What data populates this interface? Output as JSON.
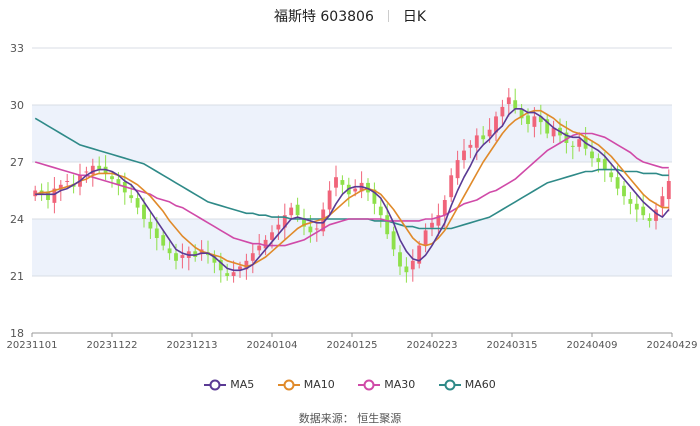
{
  "header": {
    "name": "福斯特 603806",
    "period": "日K"
  },
  "source_text": "数据来源： 恒生聚源",
  "colors": {
    "up": "#f0647a",
    "down": "#8ee04a",
    "ma5": "#5a3a94",
    "ma10": "#e08a2a",
    "ma30": "#d04aa8",
    "ma60": "#2f8a88",
    "band": "#edf2fb",
    "grid": "#d8dde6"
  },
  "chart_data": {
    "type": "candlestick",
    "ylim": [
      18,
      33
    ],
    "yticks": [
      18,
      21,
      24,
      27,
      30,
      33
    ],
    "xtick_labels": [
      "20231101",
      "20231122",
      "20231213",
      "20240104",
      "20240125",
      "20240223",
      "20240315",
      "20240409",
      "20240429"
    ],
    "closes": [
      25.5,
      25.3,
      25.0,
      25.6,
      25.8,
      26.0,
      25.7,
      26.3,
      26.5,
      26.8,
      26.6,
      26.4,
      26.1,
      25.8,
      25.4,
      25.1,
      24.6,
      24.0,
      23.5,
      23.0,
      22.6,
      22.2,
      21.8,
      22.1,
      22.3,
      22.0,
      22.4,
      22.1,
      21.7,
      21.3,
      21.0,
      21.2,
      21.5,
      21.8,
      22.2,
      22.6,
      22.9,
      23.3,
      23.7,
      24.2,
      24.6,
      24.2,
      23.6,
      23.3,
      23.5,
      24.5,
      25.5,
      26.2,
      25.8,
      25.3,
      25.6,
      25.9,
      25.4,
      24.8,
      24.2,
      23.2,
      22.4,
      21.5,
      21.2,
      21.8,
      22.6,
      23.4,
      23.8,
      24.2,
      25.0,
      26.3,
      27.1,
      27.6,
      27.9,
      28.4,
      28.2,
      28.7,
      29.4,
      29.9,
      30.4,
      29.8,
      29.3,
      29.0,
      29.4,
      29.1,
      28.5,
      28.8,
      28.4,
      28.0,
      27.8,
      28.2,
      27.7,
      27.2,
      27.0,
      26.6,
      26.2,
      25.6,
      25.2,
      24.8,
      24.5,
      24.2,
      23.9,
      24.5,
      25.2,
      26.0
    ],
    "ma5": [
      25.3,
      25.3,
      25.3,
      25.3,
      25.5,
      25.6,
      25.8,
      26.0,
      26.3,
      26.5,
      26.6,
      26.6,
      26.5,
      26.3,
      26.0,
      25.8,
      25.4,
      24.9,
      24.4,
      23.9,
      23.4,
      22.9,
      22.4,
      22.2,
      22.1,
      22.1,
      22.2,
      22.2,
      22.0,
      21.7,
      21.4,
      21.3,
      21.3,
      21.4,
      21.6,
      22.0,
      22.4,
      22.8,
      23.2,
      23.6,
      24.0,
      24.1,
      24.0,
      23.9,
      23.8,
      23.8,
      24.2,
      24.8,
      25.3,
      25.6,
      25.7,
      25.7,
      25.6,
      25.4,
      25.1,
      24.5,
      23.8,
      22.9,
      22.3,
      21.9,
      21.8,
      22.1,
      22.6,
      23.2,
      23.8,
      24.7,
      25.5,
      26.2,
      26.8,
      27.5,
      27.9,
      28.2,
      28.6,
      28.9,
      29.5,
      29.8,
      29.8,
      29.6,
      29.6,
      29.4,
      29.1,
      28.8,
      28.6,
      28.4,
      28.3,
      28.3,
      28.0,
      27.8,
      27.6,
      27.3,
      26.9,
      26.5,
      26.1,
      25.7,
      25.3,
      24.9,
      24.6,
      24.3,
      24.1,
      24.5
    ],
    "ma10": [
      25.3,
      25.4,
      25.4,
      25.5,
      25.6,
      25.7,
      25.8,
      26.0,
      26.1,
      26.3,
      26.4,
      26.4,
      26.4,
      26.3,
      26.2,
      26.0,
      25.8,
      25.5,
      25.2,
      24.8,
      24.4,
      23.9,
      23.5,
      23.1,
      22.8,
      22.5,
      22.3,
      22.2,
      22.1,
      22.0,
      21.8,
      21.7,
      21.6,
      21.5,
      21.6,
      21.8,
      22.0,
      22.3,
      22.6,
      22.9,
      23.2,
      23.5,
      23.7,
      23.8,
      23.9,
      24.0,
      24.2,
      24.5,
      24.8,
      25.1,
      25.3,
      25.5,
      25.6,
      25.5,
      25.3,
      24.9,
      24.5,
      24.0,
      23.5,
      23.0,
      22.7,
      22.6,
      22.7,
      23.0,
      23.4,
      24.0,
      24.6,
      25.2,
      25.8,
      26.4,
      27.0,
      27.5,
      28.0,
      28.5,
      28.9,
      29.2,
      29.4,
      29.6,
      29.7,
      29.7,
      29.5,
      29.3,
      29.0,
      28.8,
      28.6,
      28.5,
      28.3,
      28.1,
      27.9,
      27.6,
      27.3,
      26.9,
      26.5,
      26.1,
      25.7,
      25.3,
      25.0,
      24.8,
      24.6,
      24.6
    ],
    "ma30": [
      27.0,
      26.9,
      26.8,
      26.7,
      26.6,
      26.5,
      26.4,
      26.3,
      26.3,
      26.2,
      26.1,
      26.0,
      25.9,
      25.8,
      25.7,
      25.6,
      25.5,
      25.4,
      25.3,
      25.1,
      25.0,
      24.9,
      24.7,
      24.6,
      24.4,
      24.2,
      24.0,
      23.8,
      23.6,
      23.4,
      23.2,
      23.0,
      22.9,
      22.8,
      22.7,
      22.7,
      22.6,
      22.6,
      22.6,
      22.6,
      22.7,
      22.8,
      22.9,
      23.1,
      23.3,
      23.5,
      23.7,
      23.8,
      23.9,
      24.0,
      24.0,
      24.0,
      24.0,
      24.0,
      24.0,
      23.9,
      23.9,
      23.9,
      23.9,
      23.9,
      23.9,
      24.0,
      24.0,
      24.1,
      24.2,
      24.4,
      24.6,
      24.8,
      24.9,
      25.0,
      25.2,
      25.4,
      25.5,
      25.7,
      25.9,
      26.1,
      26.4,
      26.7,
      27.0,
      27.3,
      27.6,
      27.8,
      28.0,
      28.2,
      28.4,
      28.5,
      28.5,
      28.5,
      28.4,
      28.3,
      28.1,
      27.9,
      27.7,
      27.5,
      27.2,
      27.0,
      26.9,
      26.8,
      26.7,
      26.7
    ],
    "ma60": [
      29.3,
      29.1,
      28.9,
      28.7,
      28.5,
      28.3,
      28.1,
      27.9,
      27.8,
      27.7,
      27.6,
      27.5,
      27.4,
      27.3,
      27.2,
      27.1,
      27.0,
      26.9,
      26.7,
      26.5,
      26.3,
      26.1,
      25.9,
      25.7,
      25.5,
      25.3,
      25.1,
      24.9,
      24.8,
      24.7,
      24.6,
      24.5,
      24.4,
      24.3,
      24.3,
      24.2,
      24.2,
      24.1,
      24.1,
      24.1,
      24.0,
      24.0,
      24.0,
      24.0,
      24.0,
      24.0,
      24.0,
      24.0,
      24.0,
      24.0,
      24.0,
      24.0,
      24.0,
      23.9,
      23.9,
      23.9,
      23.8,
      23.7,
      23.6,
      23.6,
      23.5,
      23.5,
      23.5,
      23.5,
      23.5,
      23.5,
      23.6,
      23.7,
      23.8,
      23.9,
      24.0,
      24.1,
      24.3,
      24.5,
      24.7,
      24.9,
      25.1,
      25.3,
      25.5,
      25.7,
      25.9,
      26.0,
      26.1,
      26.2,
      26.3,
      26.4,
      26.5,
      26.5,
      26.6,
      26.6,
      26.6,
      26.6,
      26.5,
      26.5,
      26.5,
      26.4,
      26.4,
      26.4,
      26.3,
      26.3
    ],
    "series_names": [
      "MA5",
      "MA10",
      "MA30",
      "MA60"
    ]
  }
}
